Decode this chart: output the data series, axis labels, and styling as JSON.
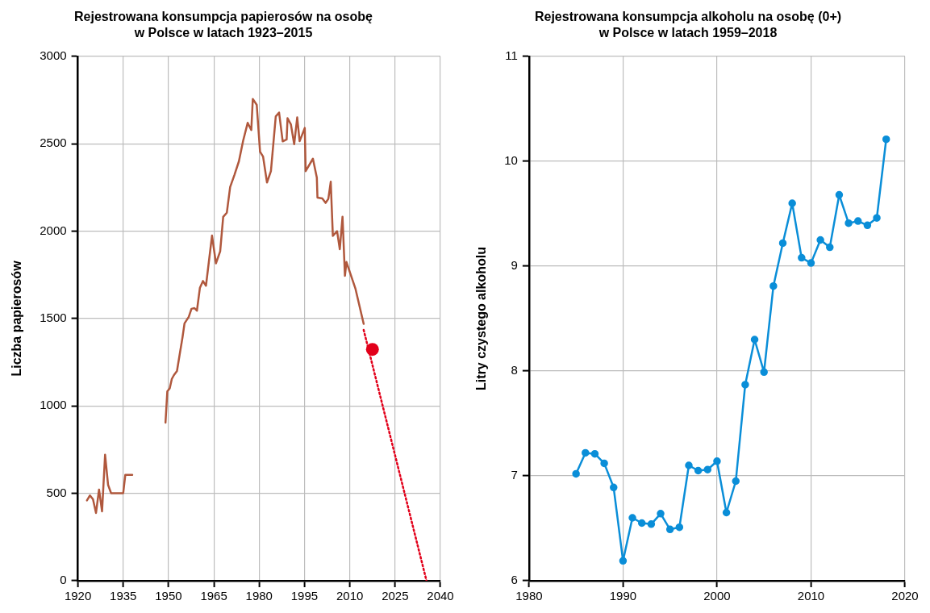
{
  "chart_data": [
    {
      "type": "line",
      "title": "Rejestrowana konsumpcja papierosów na osobę\nw Polsce w latach 1923–2015",
      "ylabel": "Liczba papierosów",
      "xlim": [
        1920,
        2040
      ],
      "xticks": [
        1920,
        1935,
        1950,
        1965,
        1980,
        1995,
        2010,
        2025,
        2040
      ],
      "ylim": [
        0,
        3000
      ],
      "yticks": [
        0,
        500,
        1000,
        1500,
        2000,
        2500,
        3000
      ],
      "grid": true,
      "legend": false,
      "series": [
        {
          "color": "#b0583d",
          "marker": "none",
          "x": [
            1923,
            1924,
            1925,
            1926,
            1927,
            1928,
            1929,
            1930,
            1931,
            1935,
            1935.7,
            1938
          ],
          "values": [
            460,
            488,
            466,
            388,
            522,
            397,
            721,
            548,
            501,
            501,
            606,
            606
          ]
        },
        {
          "color": "#b0583d",
          "marker": "none",
          "x": [
            1949,
            1949.6,
            1950.4,
            1951.1,
            1951.8,
            1952.8,
            1953.8,
            1954.6,
            1955.3,
            1956.7,
            1957.6,
            1958.6,
            1959.4,
            1960.4,
            1961.4,
            1962.4,
            1964.4,
            1965.7,
            1967.1,
            1968.1,
            1969.3,
            1970.4,
            1971.8,
            1973.3,
            1974.7,
            1976.2,
            1977.4,
            1977.9,
            1979.2,
            1980.3,
            1981.3,
            1982.6,
            1983.9,
            1985.5,
            1986.6,
            1987.8,
            1989.1,
            1989.4,
            1990.5,
            1991.6,
            1992.6,
            1993.4,
            1995.1,
            1995.4,
            1997.8,
            1999.1,
            1999.3,
            2000.9,
            2002,
            2002.9,
            2003.7,
            2004.4,
            2005.8,
            2006.7,
            2007.6,
            2008.4,
            2008.9,
            2011.9,
            2014.6
          ],
          "values": [
            905,
            1083,
            1101,
            1155,
            1177,
            1200,
            1306,
            1389,
            1473,
            1510,
            1556,
            1560,
            1545,
            1677,
            1715,
            1688,
            1975,
            1816,
            1885,
            2082,
            2106,
            2253,
            2321,
            2400,
            2518,
            2620,
            2579,
            2757,
            2723,
            2455,
            2427,
            2279,
            2344,
            2657,
            2679,
            2514,
            2525,
            2647,
            2612,
            2498,
            2651,
            2515,
            2591,
            2344,
            2415,
            2306,
            2192,
            2188,
            2162,
            2185,
            2283,
            1973,
            2000,
            1897,
            2083,
            1745,
            1824,
            1670,
            1470
          ]
        },
        {
          "color": "#e2001a",
          "marker": "none",
          "line_style": "dotted",
          "x": [
            2014.6,
            2035.4
          ],
          "values": [
            1435,
            0
          ]
        },
        {
          "type": "scatter",
          "marker": "circle",
          "color": "#e2001a",
          "x": [
            2017.5
          ],
          "values": [
            1324
          ]
        }
      ]
    },
    {
      "type": "line",
      "title": "Rejestrowana konsumpcja alkoholu na osobę (0+)\nw Polsce w latach 1959–2018",
      "ylabel": "Litry czystego alkoholu",
      "xlim": [
        1980,
        2020
      ],
      "xticks": [
        1980,
        1990,
        2000,
        2010,
        2020
      ],
      "ylim": [
        6,
        11
      ],
      "yticks": [
        6,
        7,
        8,
        9,
        10,
        11
      ],
      "grid": true,
      "legend": false,
      "marker": "circle",
      "series": [
        {
          "color": "#0a8ed8",
          "x": [
            1985,
            1986,
            1987,
            1988,
            1989,
            1990,
            1991,
            1992,
            1993,
            1994,
            1995,
            1996,
            1997,
            1998,
            1999,
            2000,
            2001,
            2002,
            2003,
            2004,
            2005,
            2006,
            2007,
            2008,
            2009,
            2010,
            2011,
            2012,
            2013,
            2014,
            2015,
            2016,
            2017,
            2018
          ],
          "values": [
            7.02,
            7.22,
            7.21,
            7.12,
            6.89,
            6.19,
            6.6,
            6.55,
            6.54,
            6.64,
            6.49,
            6.51,
            7.1,
            7.05,
            7.06,
            7.14,
            6.65,
            6.95,
            7.87,
            8.3,
            7.99,
            8.81,
            9.22,
            9.6,
            9.08,
            9.03,
            9.25,
            9.18,
            9.68,
            9.41,
            9.43,
            9.39,
            9.46,
            10.21
          ]
        }
      ]
    }
  ]
}
